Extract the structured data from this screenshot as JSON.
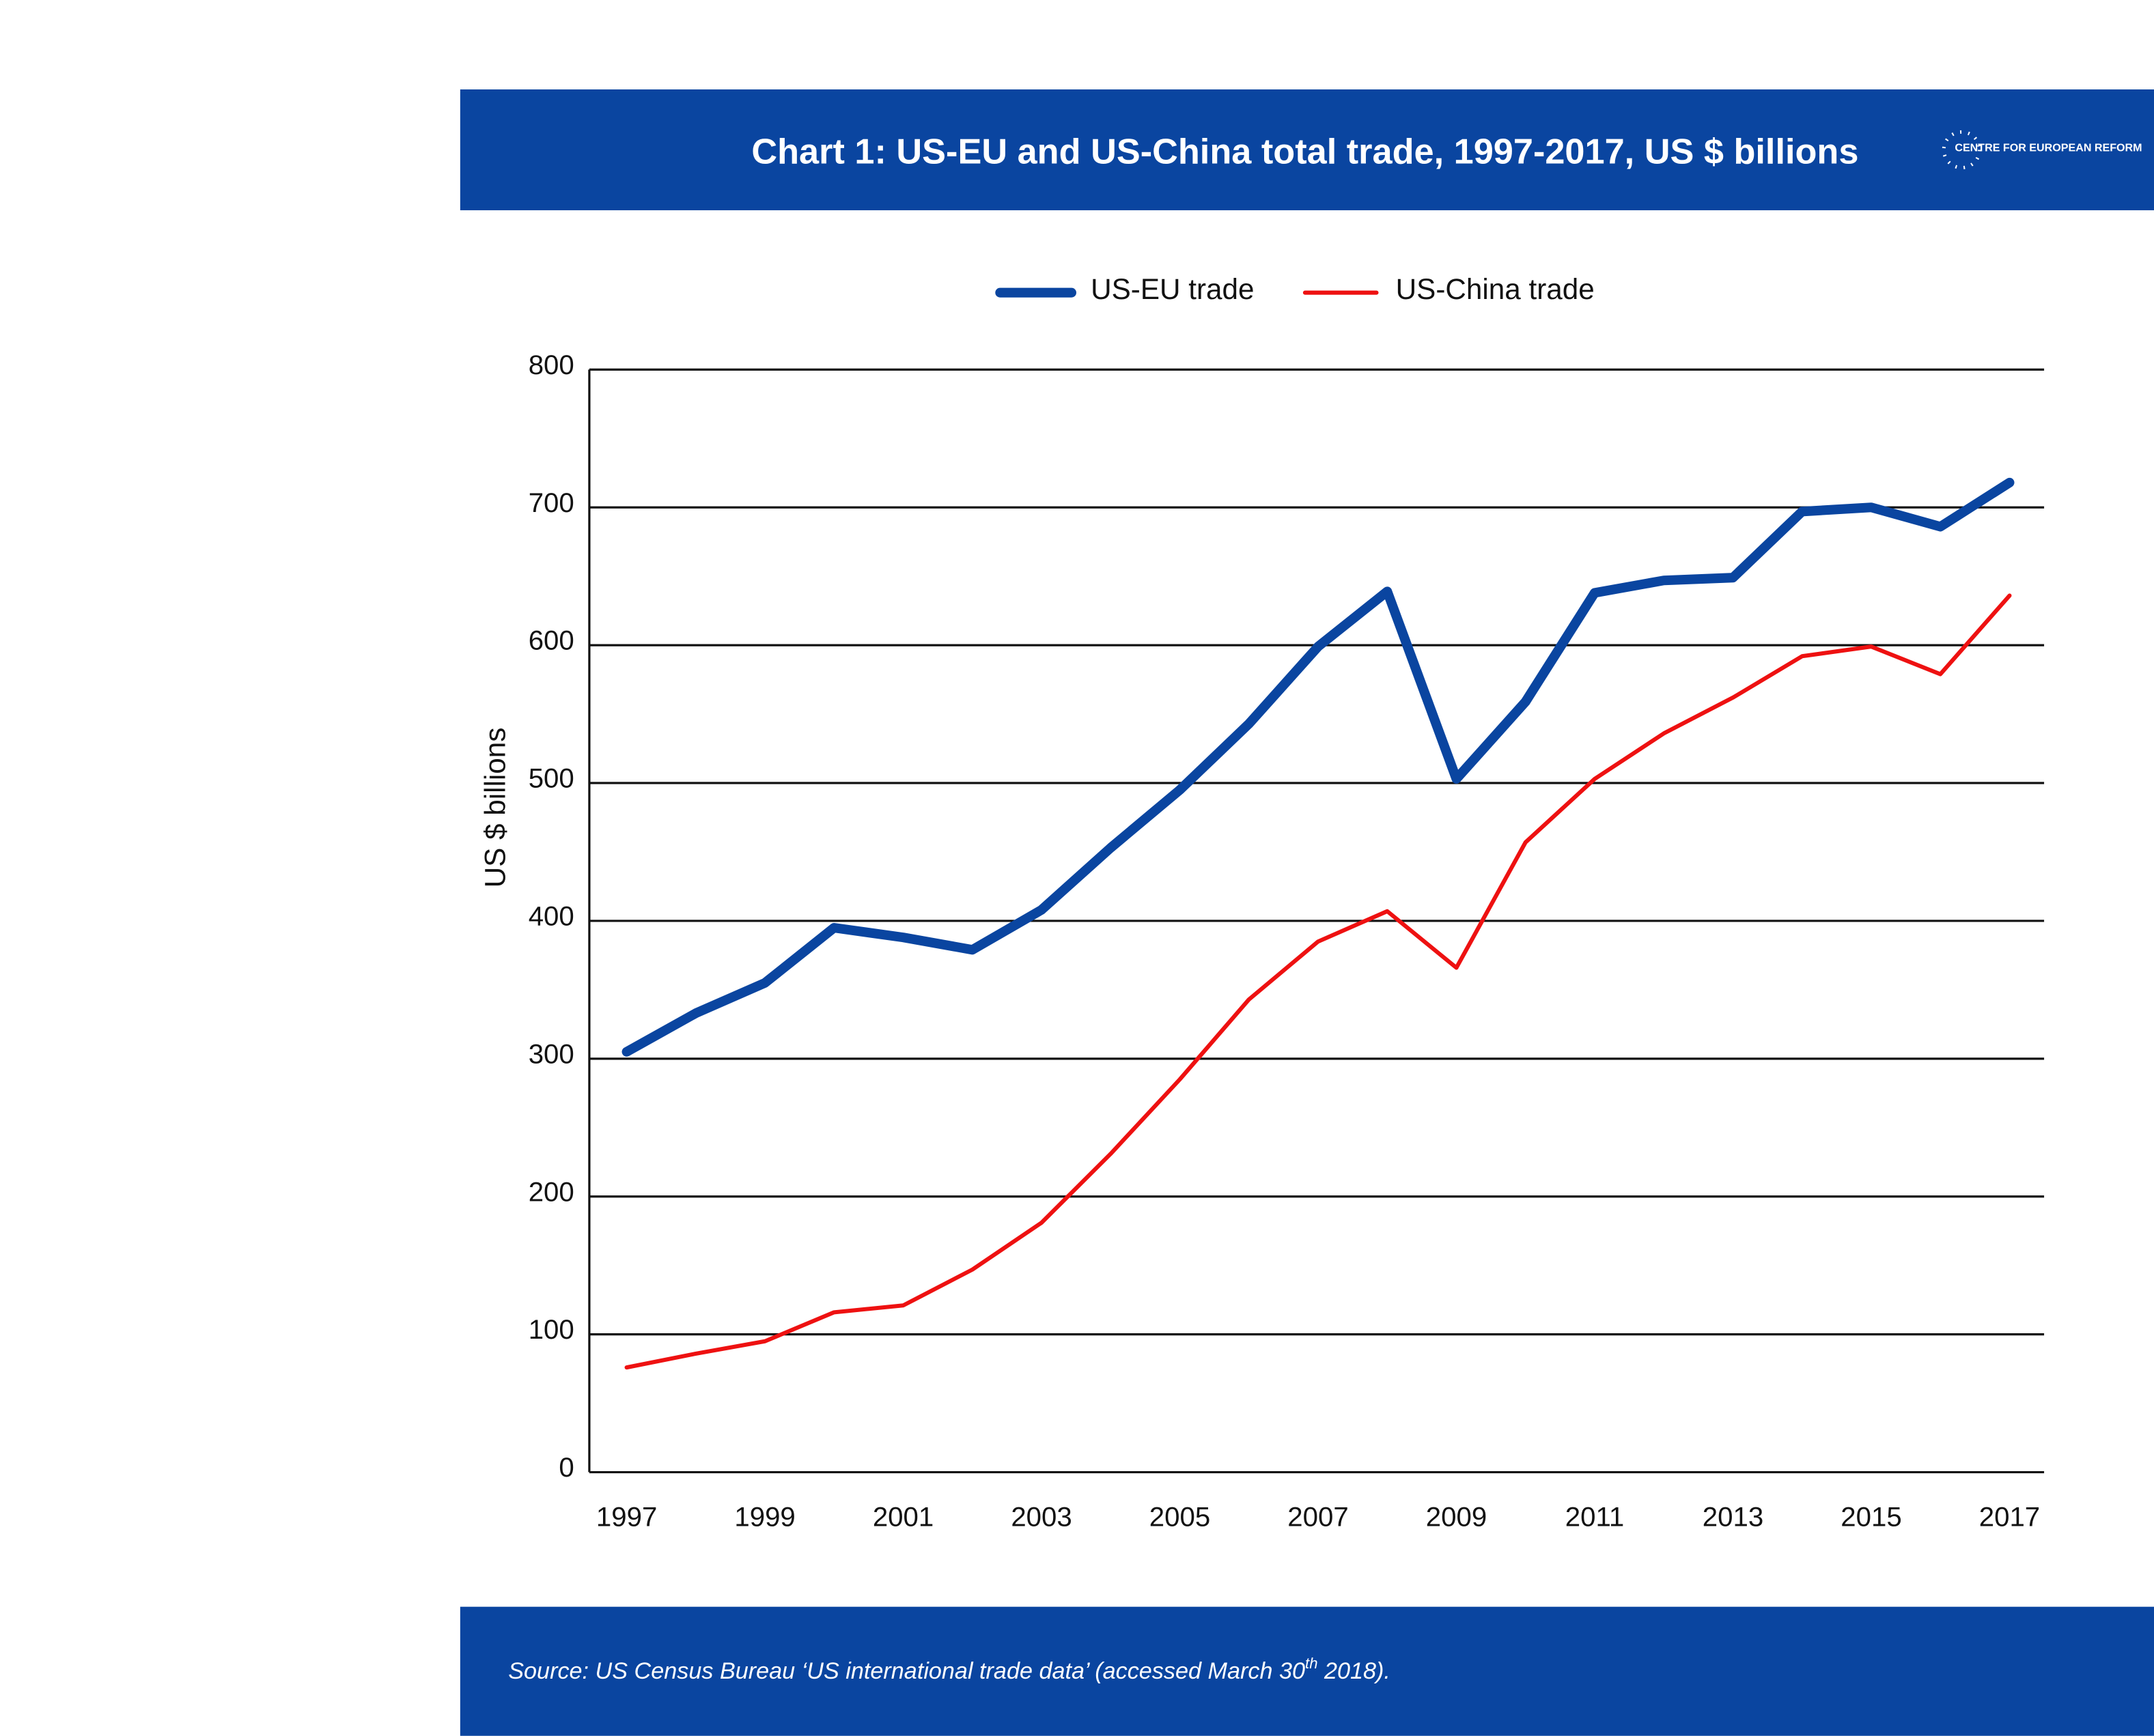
{
  "header": {
    "logo_text": "CENTRE FOR EUROPEAN REFORM"
  },
  "chart_data": {
    "type": "line",
    "title": "Chart 1: US-EU and US-China total trade, 1997-2017, US $ billions",
    "y_label": "US $ billions",
    "x": [
      1997,
      1998,
      1999,
      2000,
      2001,
      2002,
      2003,
      2004,
      2005,
      2006,
      2007,
      2008,
      2009,
      2010,
      2011,
      2012,
      2013,
      2014,
      2015,
      2016,
      2017
    ],
    "series": [
      {
        "name": "US-EU trade",
        "color": "#0a45a0",
        "width": 7,
        "values": [
          305,
          333,
          355,
          395,
          388,
          379,
          408,
          453,
          495,
          543,
          599,
          639,
          503,
          559,
          638,
          647,
          649,
          697,
          700,
          686,
          718
        ]
      },
      {
        "name": "US-China trade",
        "color": "#ee1111",
        "width": 3,
        "values": [
          76,
          86,
          95,
          116,
          121,
          147,
          181,
          231,
          285,
          343,
          385,
          407,
          366,
          457,
          503,
          536,
          562,
          592,
          599,
          579,
          636
        ]
      }
    ],
    "xlim": [
      1996.46,
      2017.5
    ],
    "xticks": [
      1997,
      1999,
      2001,
      2003,
      2005,
      2007,
      2009,
      2011,
      2013,
      2015,
      2017
    ],
    "ylim": [
      0,
      800
    ],
    "yticks": [
      0,
      100,
      200,
      300,
      400,
      500,
      600,
      700,
      800
    ],
    "grid": true,
    "legend": "top"
  },
  "footer": {
    "source_before": "Source: US Census Bureau ‘US international trade data’ (accessed March 30",
    "source_sup": "th",
    "source_after": " 2018)."
  }
}
